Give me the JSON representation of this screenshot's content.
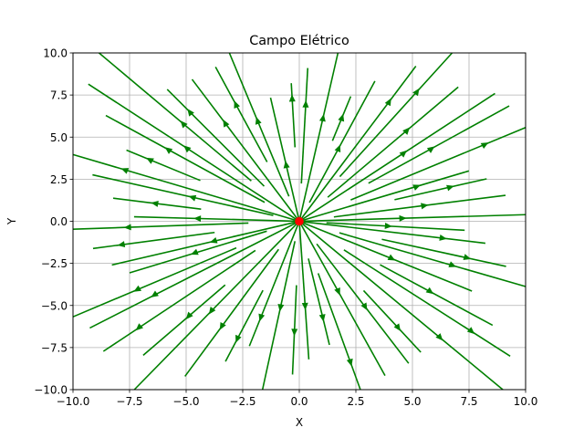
{
  "chart_data": {
    "type": "streamplot",
    "title": "Campo Elétrico",
    "xlabel": "X",
    "ylabel": "Y",
    "xlim": [
      -10,
      10
    ],
    "ylim": [
      -10,
      10
    ],
    "xticks": [
      -10,
      -7.5,
      -5,
      -2.5,
      0,
      2.5,
      5,
      7.5,
      10
    ],
    "yticks": [
      -10,
      -7.5,
      -5,
      -2.5,
      0,
      2.5,
      5,
      7.5,
      10
    ],
    "xtick_labels": [
      "−10.0",
      "−7.5",
      "−5.0",
      "−2.5",
      "0.0",
      "2.5",
      "5.0",
      "7.5",
      "10.0"
    ],
    "ytick_labels": [
      "−10.0",
      "−7.5",
      "−5.0",
      "−2.5",
      "0.0",
      "2.5",
      "5.0",
      "7.5",
      "10.0"
    ],
    "grid": true,
    "field": "radial outward from point charge",
    "charge": {
      "x": 0,
      "y": 0,
      "color": "#ff0000"
    },
    "stream_color": "#008000"
  }
}
